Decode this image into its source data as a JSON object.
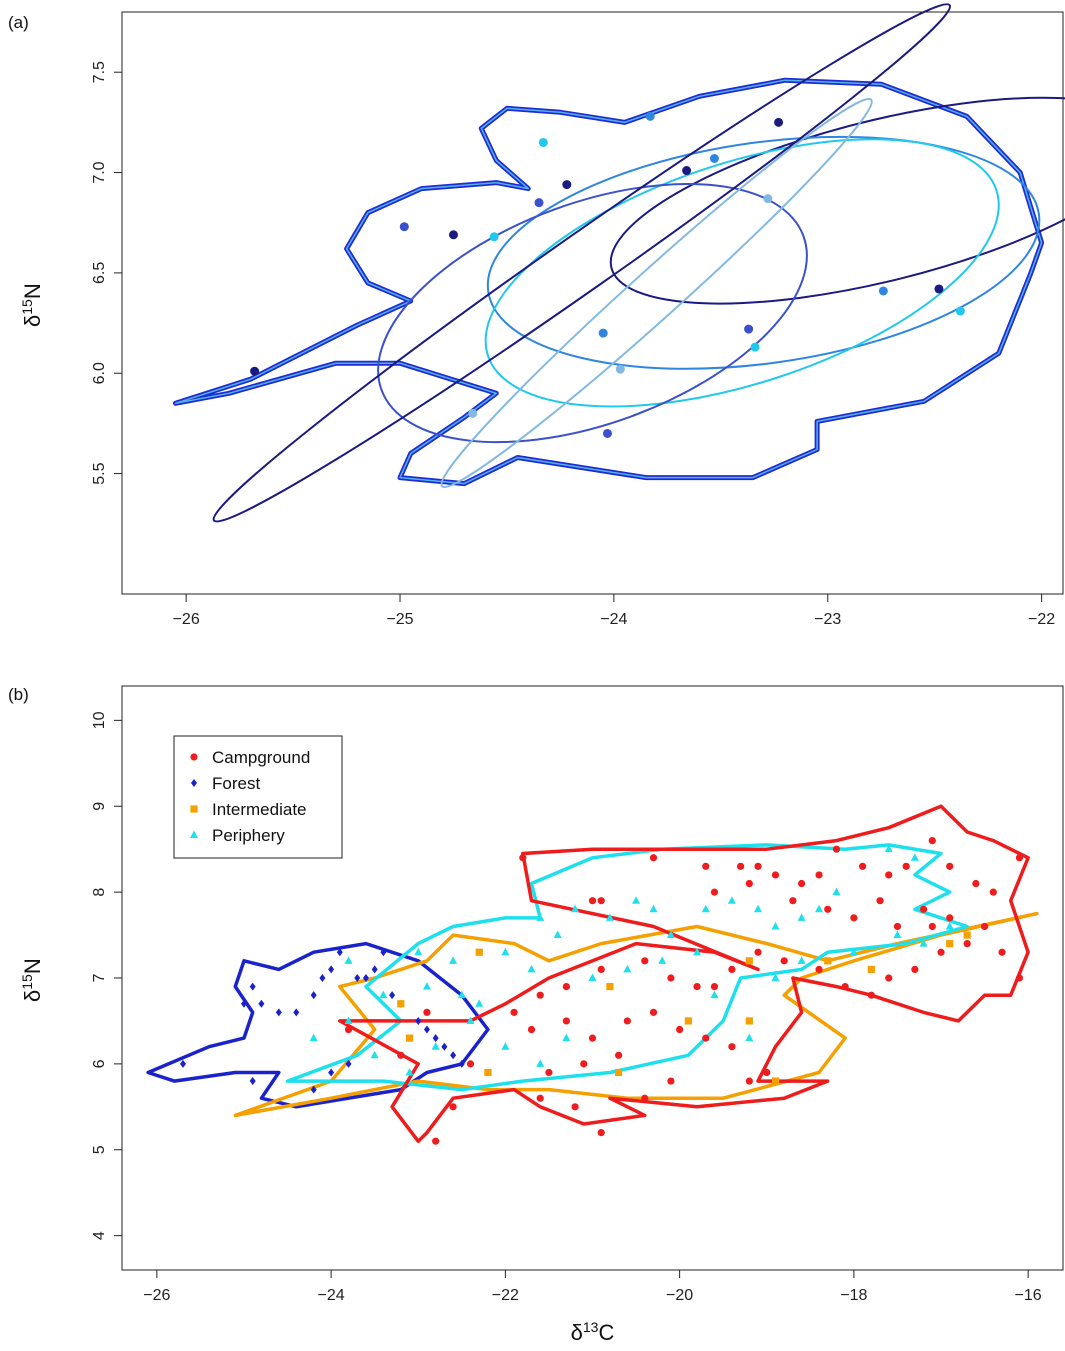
{
  "chart_data": [
    {
      "panel_label": "(a)",
      "type": "scatter",
      "ylabel_base": "δ",
      "ylabel_sup": "15",
      "ylabel_elem": "N",
      "xlim": [
        -26.3,
        -21.9
      ],
      "ylim": [
        4.9,
        7.8
      ],
      "xticks": [
        -26,
        -25,
        -24,
        -23,
        -22
      ],
      "yticks": [
        5.5,
        6.0,
        6.5,
        7.0,
        7.5
      ],
      "xtick_labels": [
        "−26",
        "−25",
        "−24",
        "−23",
        "−22"
      ],
      "ytick_labels": [
        "5.5",
        "6.0",
        "6.5",
        "7.0",
        "7.5"
      ],
      "colors": {
        "hull": "#1f2bd6",
        "navy": "#1a1a80",
        "royal": "#3b50cc",
        "mid": "#2f86e0",
        "cyan": "#22c8ec",
        "light": "#82b8e2"
      },
      "points": [
        {
          "x": -25.68,
          "y": 6.01,
          "color": "navy"
        },
        {
          "x": -24.98,
          "y": 6.73,
          "color": "royal"
        },
        {
          "x": -24.75,
          "y": 6.69,
          "color": "navy"
        },
        {
          "x": -24.66,
          "y": 5.8,
          "color": "light"
        },
        {
          "x": -24.56,
          "y": 6.68,
          "color": "cyan"
        },
        {
          "x": -24.35,
          "y": 6.85,
          "color": "royal"
        },
        {
          "x": -24.33,
          "y": 7.15,
          "color": "cyan"
        },
        {
          "x": -24.22,
          "y": 6.94,
          "color": "navy"
        },
        {
          "x": -24.05,
          "y": 6.2,
          "color": "mid"
        },
        {
          "x": -24.03,
          "y": 5.7,
          "color": "royal"
        },
        {
          "x": -23.97,
          "y": 6.02,
          "color": "light"
        },
        {
          "x": -23.83,
          "y": 7.28,
          "color": "mid"
        },
        {
          "x": -23.66,
          "y": 7.01,
          "color": "navy"
        },
        {
          "x": -23.53,
          "y": 7.07,
          "color": "mid"
        },
        {
          "x": -23.37,
          "y": 6.22,
          "color": "royal"
        },
        {
          "x": -23.34,
          "y": 6.13,
          "color": "cyan"
        },
        {
          "x": -23.28,
          "y": 6.87,
          "color": "light"
        },
        {
          "x": -23.23,
          "y": 7.25,
          "color": "navy"
        },
        {
          "x": -22.74,
          "y": 6.41,
          "color": "mid"
        },
        {
          "x": -22.48,
          "y": 6.42,
          "color": "navy"
        },
        {
          "x": -22.38,
          "y": 6.31,
          "color": "cyan"
        }
      ],
      "ellipses": [
        {
          "cx": -22.75,
          "cy": 6.86,
          "rx": 1.3,
          "ry": 0.4,
          "rot": -14,
          "color": "navy"
        },
        {
          "cx": -23.3,
          "cy": 6.6,
          "rx": 1.3,
          "ry": 0.55,
          "rot": -8,
          "color": "mid"
        },
        {
          "cx": -23.4,
          "cy": 6.5,
          "rx": 1.25,
          "ry": 0.55,
          "rot": -18,
          "color": "cyan"
        },
        {
          "cx": -24.1,
          "cy": 6.3,
          "rx": 1.05,
          "ry": 0.55,
          "rot": -20,
          "color": "royal"
        },
        {
          "cx": -24.15,
          "cy": 6.55,
          "rx": 2.1,
          "ry": 0.14,
          "rot": -35,
          "color": "navy"
        },
        {
          "cx": -23.8,
          "cy": 6.4,
          "rx": 1.35,
          "ry": 0.12,
          "rot": -42,
          "color": "light"
        }
      ]
    },
    {
      "panel_label": "(b)",
      "type": "scatter",
      "ylabel_base": "δ",
      "ylabel_sup": "15",
      "ylabel_elem": "N",
      "xlabel_base": "δ",
      "xlabel_sup": "13",
      "xlabel_elem": "C",
      "xlim": [
        -26.4,
        -15.6
      ],
      "ylim": [
        3.6,
        10.4
      ],
      "xticks": [
        -26,
        -24,
        -22,
        -20,
        -18,
        -16
      ],
      "yticks": [
        4,
        5,
        6,
        7,
        8,
        9,
        10
      ],
      "xtick_labels": [
        "−26",
        "−24",
        "−22",
        "−20",
        "−18",
        "−16"
      ],
      "ytick_labels": [
        "4",
        "5",
        "6",
        "7",
        "8",
        "9",
        "10"
      ],
      "legend_position": "top-left",
      "series": [
        {
          "name": "Campground",
          "marker": "circle",
          "color": "#ee1c1c",
          "points": [
            [
              -21.8,
              8.4
            ],
            [
              -21.0,
              7.9
            ],
            [
              -20.9,
              7.9
            ],
            [
              -20.3,
              8.4
            ],
            [
              -19.7,
              8.3
            ],
            [
              -19.6,
              8.0
            ],
            [
              -19.3,
              8.3
            ],
            [
              -19.2,
              8.1
            ],
            [
              -19.1,
              8.3
            ],
            [
              -18.9,
              8.2
            ],
            [
              -18.6,
              8.1
            ],
            [
              -18.4,
              8.2
            ],
            [
              -18.2,
              8.5
            ],
            [
              -17.9,
              8.3
            ],
            [
              -17.6,
              8.2
            ],
            [
              -17.4,
              8.3
            ],
            [
              -17.1,
              8.6
            ],
            [
              -16.9,
              8.3
            ],
            [
              -16.6,
              8.1
            ],
            [
              -16.4,
              8.0
            ],
            [
              -16.1,
              8.4
            ],
            [
              -18.7,
              7.9
            ],
            [
              -18.3,
              7.8
            ],
            [
              -18.0,
              7.7
            ],
            [
              -17.7,
              7.9
            ],
            [
              -17.5,
              7.6
            ],
            [
              -17.2,
              7.8
            ],
            [
              -16.9,
              7.7
            ],
            [
              -16.7,
              7.4
            ],
            [
              -16.5,
              7.6
            ],
            [
              -16.3,
              7.3
            ],
            [
              -16.1,
              7.0
            ],
            [
              -17.0,
              7.3
            ],
            [
              -17.3,
              7.1
            ],
            [
              -17.6,
              7.0
            ],
            [
              -17.8,
              6.8
            ],
            [
              -18.1,
              6.9
            ],
            [
              -18.4,
              7.1
            ],
            [
              -18.8,
              7.2
            ],
            [
              -19.1,
              7.3
            ],
            [
              -19.4,
              7.1
            ],
            [
              -19.6,
              6.9
            ],
            [
              -20.9,
              7.1
            ],
            [
              -20.4,
              7.2
            ],
            [
              -20.1,
              7.0
            ],
            [
              -19.8,
              6.9
            ],
            [
              -21.3,
              6.9
            ],
            [
              -21.6,
              6.8
            ],
            [
              -21.9,
              6.6
            ],
            [
              -21.7,
              6.4
            ],
            [
              -21.3,
              6.5
            ],
            [
              -21.0,
              6.3
            ],
            [
              -20.6,
              6.5
            ],
            [
              -20.3,
              6.6
            ],
            [
              -20.0,
              6.4
            ],
            [
              -19.7,
              6.3
            ],
            [
              -19.4,
              6.2
            ],
            [
              -20.7,
              6.1
            ],
            [
              -21.1,
              6.0
            ],
            [
              -21.5,
              5.9
            ],
            [
              -20.1,
              5.8
            ],
            [
              -19.2,
              5.8
            ],
            [
              -19.0,
              5.9
            ],
            [
              -20.4,
              5.6
            ],
            [
              -21.2,
              5.5
            ],
            [
              -21.6,
              5.6
            ],
            [
              -20.9,
              5.2
            ],
            [
              -22.6,
              5.5
            ],
            [
              -22.8,
              5.1
            ],
            [
              -23.2,
              6.1
            ],
            [
              -23.8,
              6.4
            ],
            [
              -22.4,
              6.0
            ],
            [
              -22.9,
              6.6
            ],
            [
              -17.1,
              7.6
            ]
          ]
        },
        {
          "name": "Forest",
          "marker": "diamond",
          "color": "#1a22cc",
          "points": [
            [
              -25.7,
              6.0
            ],
            [
              -25.0,
              6.7
            ],
            [
              -24.9,
              6.9
            ],
            [
              -24.8,
              6.7
            ],
            [
              -24.6,
              6.6
            ],
            [
              -24.4,
              6.6
            ],
            [
              -24.2,
              6.8
            ],
            [
              -24.1,
              7.0
            ],
            [
              -24.0,
              7.1
            ],
            [
              -23.9,
              7.3
            ],
            [
              -23.7,
              7.0
            ],
            [
              -23.6,
              7.0
            ],
            [
              -23.5,
              7.1
            ],
            [
              -23.4,
              7.3
            ],
            [
              -23.3,
              6.8
            ],
            [
              -23.2,
              6.7
            ],
            [
              -23.0,
              6.5
            ],
            [
              -22.9,
              6.4
            ],
            [
              -22.8,
              6.3
            ],
            [
              -22.7,
              6.2
            ],
            [
              -22.6,
              6.1
            ],
            [
              -22.5,
              6.0
            ],
            [
              -23.8,
              6.0
            ],
            [
              -24.0,
              5.9
            ],
            [
              -24.2,
              5.7
            ],
            [
              -24.9,
              5.8
            ]
          ]
        },
        {
          "name": "Intermediate",
          "marker": "square",
          "color": "#f5a000",
          "points": [
            [
              -23.2,
              6.7
            ],
            [
              -23.1,
              6.3
            ],
            [
              -22.3,
              7.3
            ],
            [
              -22.2,
              5.9
            ],
            [
              -20.8,
              6.9
            ],
            [
              -20.7,
              5.9
            ],
            [
              -19.9,
              6.5
            ],
            [
              -19.2,
              7.2
            ],
            [
              -19.2,
              6.5
            ],
            [
              -18.9,
              5.8
            ],
            [
              -18.3,
              7.2
            ],
            [
              -17.8,
              7.1
            ],
            [
              -16.9,
              7.4
            ],
            [
              -16.7,
              7.5
            ]
          ]
        },
        {
          "name": "Periphery",
          "marker": "triangle",
          "color": "#1ee0ec",
          "points": [
            [
              -23.8,
              7.2
            ],
            [
              -23.4,
              6.8
            ],
            [
              -23.0,
              7.3
            ],
            [
              -22.6,
              7.2
            ],
            [
              -22.9,
              6.9
            ],
            [
              -22.5,
              6.8
            ],
            [
              -22.3,
              6.7
            ],
            [
              -22.0,
              7.3
            ],
            [
              -21.7,
              7.1
            ],
            [
              -21.4,
              7.5
            ],
            [
              -21.6,
              7.7
            ],
            [
              -21.2,
              7.8
            ],
            [
              -20.8,
              7.7
            ],
            [
              -20.5,
              7.9
            ],
            [
              -20.3,
              7.8
            ],
            [
              -20.1,
              7.5
            ],
            [
              -19.7,
              7.8
            ],
            [
              -19.4,
              7.9
            ],
            [
              -19.1,
              7.8
            ],
            [
              -18.9,
              7.6
            ],
            [
              -18.6,
              7.7
            ],
            [
              -18.4,
              7.8
            ],
            [
              -18.2,
              8.0
            ],
            [
              -17.6,
              8.5
            ],
            [
              -17.3,
              8.4
            ],
            [
              -19.8,
              7.3
            ],
            [
              -20.2,
              7.2
            ],
            [
              -20.6,
              7.1
            ],
            [
              -21.0,
              7.0
            ],
            [
              -21.3,
              6.3
            ],
            [
              -21.6,
              6.0
            ],
            [
              -22.0,
              6.2
            ],
            [
              -22.4,
              6.5
            ],
            [
              -22.8,
              6.2
            ],
            [
              -19.6,
              6.8
            ],
            [
              -19.2,
              6.3
            ],
            [
              -18.9,
              7.0
            ],
            [
              -18.6,
              7.2
            ],
            [
              -18.0,
              7.3
            ],
            [
              -17.5,
              7.5
            ],
            [
              -17.2,
              7.4
            ],
            [
              -16.9,
              7.6
            ],
            [
              -23.1,
              5.9
            ],
            [
              -23.5,
              6.1
            ],
            [
              -23.8,
              6.5
            ],
            [
              -24.2,
              6.3
            ]
          ]
        }
      ]
    }
  ]
}
